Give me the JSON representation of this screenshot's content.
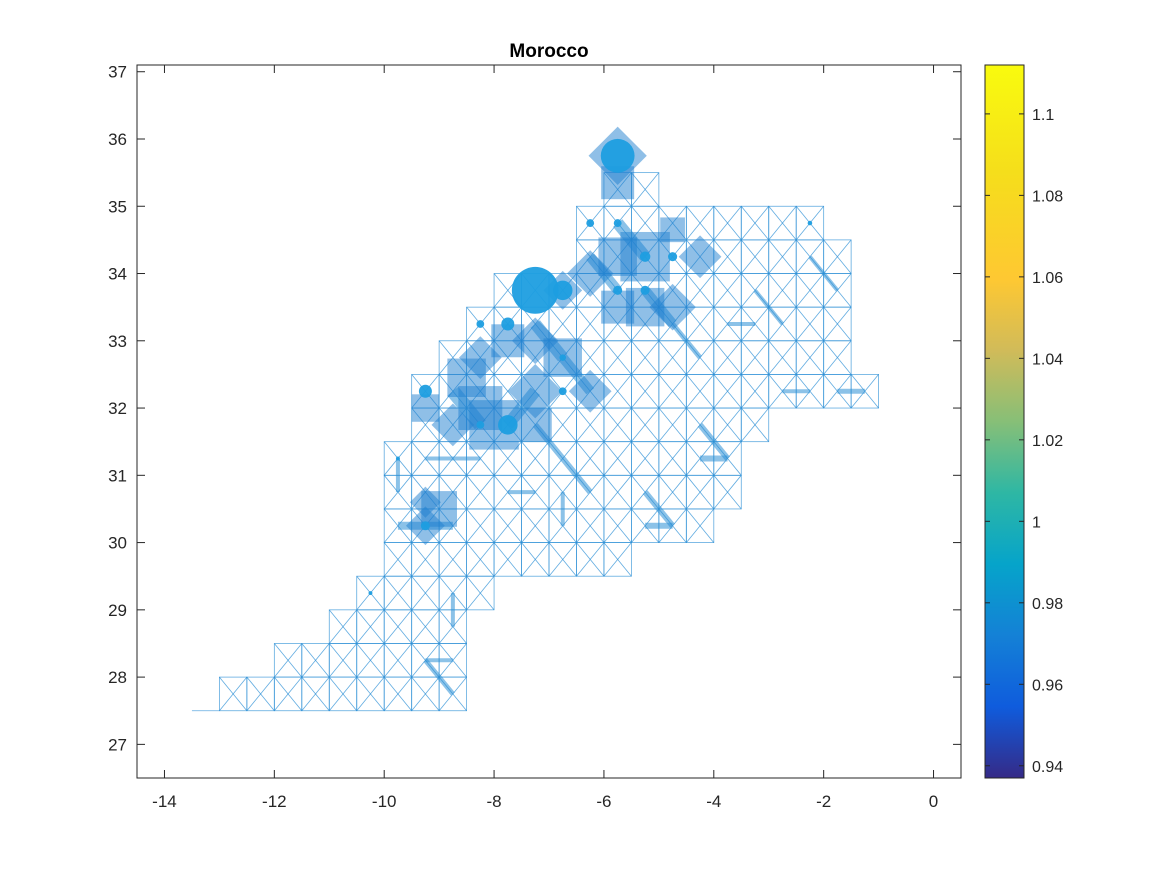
{
  "chart_data": {
    "type": "network-map",
    "title": "Morocco",
    "xlabel": "",
    "ylabel": "",
    "xlim": [
      -14.5,
      0.5
    ],
    "ylim": [
      26.5,
      37.1
    ],
    "x_ticks": [
      -14,
      -12,
      -10,
      -8,
      -6,
      -4,
      -2,
      0
    ],
    "y_ticks": [
      27,
      28,
      29,
      30,
      31,
      32,
      33,
      34,
      35,
      36,
      37
    ],
    "grid": false,
    "colorbar": {
      "colormap": "parula",
      "clim": [
        0.937,
        1.112
      ],
      "ticks": [
        0.94,
        0.96,
        0.98,
        1,
        1.02,
        1.04,
        1.06,
        1.08,
        1.1
      ],
      "tick_labels": [
        "0.94",
        "0.96",
        "0.98",
        "1",
        "1.02",
        "1.04",
        "1.06",
        "1.08",
        "1.1"
      ]
    },
    "network": {
      "cell_size_deg": 0.5,
      "edge_color": "#2b8fd6",
      "node_color": "#1e9ee0",
      "rows": [
        {
          "lat": 35.25,
          "lon_range": [
            -5.75,
            -5.25
          ]
        },
        {
          "lat": 34.75,
          "lon_range": [
            -6.25,
            -2.25
          ]
        },
        {
          "lat": 34.25,
          "lon_range": [
            -6.25,
            -1.75
          ]
        },
        {
          "lat": 33.75,
          "lon_range": [
            -7.75,
            -1.75
          ]
        },
        {
          "lat": 33.25,
          "lon_range": [
            -8.25,
            -1.75
          ]
        },
        {
          "lat": 32.75,
          "lon_range": [
            -8.75,
            -1.75
          ]
        },
        {
          "lat": 32.25,
          "lon_range": [
            -9.25,
            -1.25
          ]
        },
        {
          "lat": 31.75,
          "lon_range": [
            -9.25,
            -3.25
          ]
        },
        {
          "lat": 31.25,
          "lon_range": [
            -9.75,
            -3.75
          ]
        },
        {
          "lat": 30.75,
          "lon_range": [
            -9.75,
            -3.75
          ]
        },
        {
          "lat": 30.25,
          "lon_range": [
            -9.75,
            -4.25
          ]
        },
        {
          "lat": 29.75,
          "lon_range": [
            -9.75,
            -5.75
          ]
        },
        {
          "lat": 29.25,
          "lon_range": [
            -10.25,
            -8.25
          ]
        },
        {
          "lat": 28.75,
          "lon_range": [
            -10.75,
            -8.75
          ]
        },
        {
          "lat": 28.25,
          "lon_range": [
            -11.75,
            -8.75
          ]
        },
        {
          "lat": 27.75,
          "lon_range": [
            -12.75,
            -8.75
          ]
        }
      ],
      "heavy_segments": [
        {
          "from": [
            -5.75,
            34.75
          ],
          "to": [
            -5.25,
            34.25
          ],
          "w": 12
        },
        {
          "from": [
            -6.25,
            34.25
          ],
          "to": [
            -5.75,
            33.75
          ],
          "w": 10
        },
        {
          "from": [
            -7.25,
            33.25
          ],
          "to": [
            -6.75,
            32.75
          ],
          "w": 12
        },
        {
          "from": [
            -8.75,
            32.25
          ],
          "to": [
            -8.25,
            31.75
          ],
          "w": 14
        },
        {
          "from": [
            -7.75,
            31.75
          ],
          "to": [
            -7.25,
            32.25
          ],
          "w": 12
        },
        {
          "from": [
            -6.75,
            32.75
          ],
          "to": [
            -6.25,
            32.25
          ],
          "w": 10
        },
        {
          "from": [
            -7.25,
            31.75
          ],
          "to": [
            -6.25,
            30.75
          ],
          "w": 6
        },
        {
          "from": [
            -5.25,
            33.75
          ],
          "to": [
            -4.75,
            33.25
          ],
          "w": 10
        },
        {
          "from": [
            -4.75,
            33.25
          ],
          "to": [
            -4.25,
            32.75
          ],
          "w": 5
        },
        {
          "from": [
            -3.25,
            33.75
          ],
          "to": [
            -2.75,
            33.25
          ],
          "w": 4
        },
        {
          "from": [
            -2.25,
            34.25
          ],
          "to": [
            -1.75,
            33.75
          ],
          "w": 4
        },
        {
          "from": [
            -3.75,
            33.25
          ],
          "to": [
            -3.25,
            33.25
          ],
          "w": 4
        },
        {
          "from": [
            -2.75,
            32.25
          ],
          "to": [
            -2.25,
            32.25
          ],
          "w": 4
        },
        {
          "from": [
            -1.75,
            32.25
          ],
          "to": [
            -1.25,
            32.25
          ],
          "w": 5
        },
        {
          "from": [
            -4.25,
            31.75
          ],
          "to": [
            -3.75,
            31.25
          ],
          "w": 6
        },
        {
          "from": [
            -4.25,
            31.25
          ],
          "to": [
            -3.75,
            31.25
          ],
          "w": 6
        },
        {
          "from": [
            -5.25,
            30.75
          ],
          "to": [
            -4.75,
            30.25
          ],
          "w": 6
        },
        {
          "from": [
            -5.25,
            30.25
          ],
          "to": [
            -4.75,
            30.25
          ],
          "w": 6
        },
        {
          "from": [
            -9.75,
            30.25
          ],
          "to": [
            -8.75,
            30.25
          ],
          "w": 8
        },
        {
          "from": [
            -9.75,
            31.25
          ],
          "to": [
            -9.75,
            30.75
          ],
          "w": 4
        },
        {
          "from": [
            -8.75,
            29.25
          ],
          "to": [
            -8.75,
            28.75
          ],
          "w": 4
        },
        {
          "from": [
            -9.25,
            28.25
          ],
          "to": [
            -8.75,
            27.75
          ],
          "w": 5
        },
        {
          "from": [
            -9.25,
            28.25
          ],
          "to": [
            -8.75,
            28.25
          ],
          "w": 4
        },
        {
          "from": [
            -8.75,
            31.25
          ],
          "to": [
            -8.25,
            31.25
          ],
          "w": 4
        },
        {
          "from": [
            -9.25,
            31.25
          ],
          "to": [
            -8.75,
            31.25
          ],
          "w": 4
        },
        {
          "from": [
            -6.75,
            30.75
          ],
          "to": [
            -6.75,
            30.25
          ],
          "w": 4
        },
        {
          "from": [
            -7.75,
            30.75
          ],
          "to": [
            -7.25,
            30.75
          ],
          "w": 4
        }
      ],
      "blocks": [
        {
          "lon": -5.75,
          "lat": 35.75,
          "size": 0.75,
          "rot": 45
        },
        {
          "lon": -5.75,
          "lat": 35.35,
          "size": 0.6,
          "rot": 0
        },
        {
          "lon": -5.25,
          "lat": 34.25,
          "size": 0.9,
          "rot": 0
        },
        {
          "lon": -5.75,
          "lat": 34.25,
          "size": 0.7,
          "rot": 0
        },
        {
          "lon": -4.25,
          "lat": 34.25,
          "size": 0.55,
          "rot": 45
        },
        {
          "lon": -4.75,
          "lat": 34.65,
          "size": 0.45,
          "rot": 0
        },
        {
          "lon": -6.25,
          "lat": 34.0,
          "size": 0.6,
          "rot": 45
        },
        {
          "lon": -5.25,
          "lat": 33.5,
          "size": 0.7,
          "rot": 0
        },
        {
          "lon": -4.75,
          "lat": 33.5,
          "size": 0.6,
          "rot": 45
        },
        {
          "lon": -5.75,
          "lat": 33.5,
          "size": 0.6,
          "rot": 0
        },
        {
          "lon": -6.75,
          "lat": 33.75,
          "size": 0.5,
          "rot": 45
        },
        {
          "lon": -7.75,
          "lat": 33.0,
          "size": 0.6,
          "rot": 0
        },
        {
          "lon": -7.25,
          "lat": 33.0,
          "size": 0.6,
          "rot": 45
        },
        {
          "lon": -6.75,
          "lat": 32.75,
          "size": 0.7,
          "rot": 0
        },
        {
          "lon": -6.25,
          "lat": 32.25,
          "size": 0.55,
          "rot": 45
        },
        {
          "lon": -8.25,
          "lat": 32.75,
          "size": 0.55,
          "rot": 45
        },
        {
          "lon": -8.5,
          "lat": 32.45,
          "size": 0.7,
          "rot": 0
        },
        {
          "lon": -9.25,
          "lat": 32.0,
          "size": 0.5,
          "rot": 0
        },
        {
          "lon": -8.25,
          "lat": 32.0,
          "size": 0.8,
          "rot": 0
        },
        {
          "lon": -8.0,
          "lat": 31.75,
          "size": 0.9,
          "rot": 0
        },
        {
          "lon": -7.25,
          "lat": 32.25,
          "size": 0.7,
          "rot": 45
        },
        {
          "lon": -7.25,
          "lat": 31.75,
          "size": 0.6,
          "rot": 0
        },
        {
          "lon": -8.75,
          "lat": 31.75,
          "size": 0.55,
          "rot": 45
        },
        {
          "lon": -9.0,
          "lat": 30.5,
          "size": 0.65,
          "rot": 0
        },
        {
          "lon": -9.25,
          "lat": 30.25,
          "size": 0.5,
          "rot": 45
        },
        {
          "lon": -9.25,
          "lat": 30.6,
          "size": 0.4,
          "rot": 45
        }
      ],
      "nodes": [
        {
          "lon": -5.75,
          "lat": 35.75,
          "r": 2.6
        },
        {
          "lon": -7.25,
          "lat": 33.75,
          "r": 3.6
        },
        {
          "lon": -6.75,
          "lat": 33.75,
          "r": 1.5
        },
        {
          "lon": -7.75,
          "lat": 33.25,
          "r": 1.0
        },
        {
          "lon": -8.25,
          "lat": 33.25,
          "r": 0.6
        },
        {
          "lon": -7.75,
          "lat": 31.75,
          "r": 1.5
        },
        {
          "lon": -9.25,
          "lat": 32.25,
          "r": 1.0
        },
        {
          "lon": -5.25,
          "lat": 34.25,
          "r": 0.8
        },
        {
          "lon": -4.75,
          "lat": 34.25,
          "r": 0.7
        },
        {
          "lon": -5.75,
          "lat": 34.75,
          "r": 0.6
        },
        {
          "lon": -6.25,
          "lat": 34.75,
          "r": 0.6
        },
        {
          "lon": -5.75,
          "lat": 33.75,
          "r": 0.7
        },
        {
          "lon": -5.25,
          "lat": 33.75,
          "r": 0.7
        },
        {
          "lon": -6.75,
          "lat": 32.25,
          "r": 0.6
        },
        {
          "lon": -9.25,
          "lat": 30.25,
          "r": 0.7
        },
        {
          "lon": -2.25,
          "lat": 34.75,
          "r": 0.35
        },
        {
          "lon": -10.25,
          "lat": 29.25,
          "r": 0.3
        },
        {
          "lon": -9.75,
          "lat": 31.25,
          "r": 0.3
        },
        {
          "lon": -8.25,
          "lat": 31.75,
          "r": 0.6
        },
        {
          "lon": -6.75,
          "lat": 32.75,
          "r": 0.5
        }
      ]
    }
  }
}
